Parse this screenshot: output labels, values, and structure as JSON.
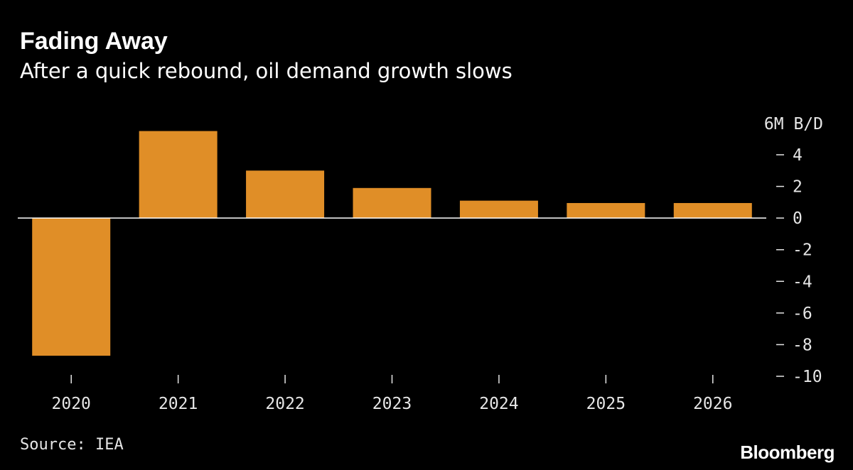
{
  "header": {
    "title": "Fading Away",
    "subtitle": "After a quick rebound, oil demand growth slows"
  },
  "footer": {
    "source": "Source: IEA",
    "brand": "Bloomberg"
  },
  "colors": {
    "background": "#000000",
    "bar": "#E08E27",
    "text": "#ffffff",
    "tick_text": "#e6e6e6",
    "baseline": "#ffffff"
  },
  "chart_data": {
    "type": "bar",
    "categories": [
      "2020",
      "2021",
      "2022",
      "2023",
      "2024",
      "2025",
      "2026"
    ],
    "values": [
      -8.7,
      5.5,
      3.0,
      1.9,
      1.1,
      0.95,
      0.95
    ],
    "title": "Fading Away",
    "subtitle": "After a quick rebound, oil demand growth slows",
    "xlabel": "",
    "ylabel": "",
    "y_unit_label": "6M B/D",
    "y_ticks": [
      4,
      2,
      0,
      -2,
      -4,
      -6,
      -8,
      -10
    ],
    "ylim": [
      -10,
      6
    ],
    "y_axis_side": "right",
    "grid": false,
    "legend": "none"
  }
}
